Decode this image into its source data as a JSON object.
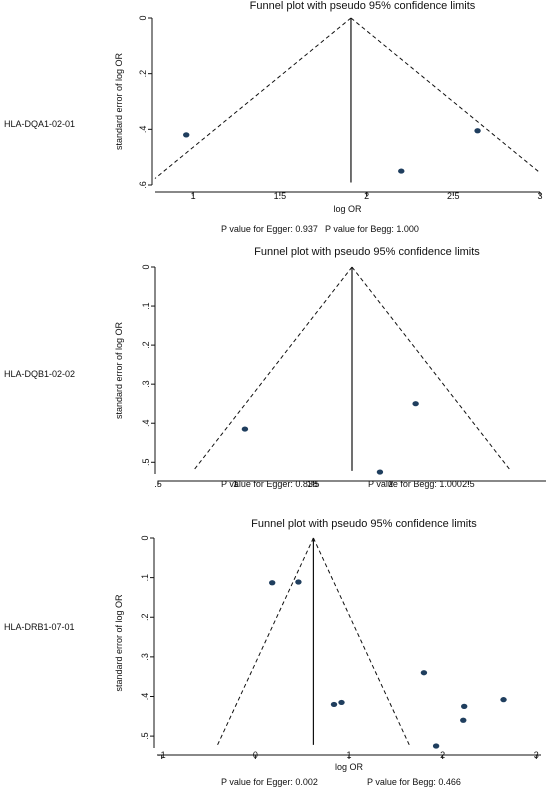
{
  "chart_data": [
    {
      "type": "scatter",
      "row_label": "HLA-DQA1-02-01",
      "title": "Funnel plot with pseudo 95% confidence limits",
      "xlabel": "log OR",
      "ylabel": "standard error of log OR",
      "xlim": [
        0.78,
        3.0
      ],
      "ylim": [
        0,
        0.6
      ],
      "y_reversed": true,
      "xticks": [
        1,
        1.5,
        2,
        2.5,
        3
      ],
      "xtick_labels": [
        "1",
        "1.5",
        "2",
        "2.5",
        "3"
      ],
      "yticks": [
        0,
        0.2,
        0.4,
        0.6
      ],
      "ytick_labels": [
        "0",
        ".2",
        ".4",
        ".6"
      ],
      "pooled_estimate": 1.91,
      "points": [
        {
          "x": 0.96,
          "y": 0.42
        },
        {
          "x": 2.2,
          "y": 0.55
        },
        {
          "x": 2.64,
          "y": 0.405
        }
      ],
      "egger_text": "P value for Egger: 0.937",
      "begg_text": "P value for Begg: 1.000"
    },
    {
      "type": "scatter",
      "row_label": "HLA-DQB1-02-02",
      "title": "Funnel plot with pseudo 95% confidence limits",
      "xlabel": "",
      "ylabel": "standard error of log OR",
      "xlim": [
        0.5,
        3.0
      ],
      "ylim": [
        0,
        0.53
      ],
      "y_reversed": true,
      "xticks": [
        0.5,
        1,
        1.5,
        2,
        2.5
      ],
      "xtick_labels": [
        ".5",
        "1",
        "1.5",
        "2",
        "2.5"
      ],
      "yticks": [
        0,
        0.1,
        0.2,
        0.3,
        0.4,
        0.5
      ],
      "ytick_labels": [
        "0",
        ".1",
        ".2",
        ".3",
        ".4",
        ".5"
      ],
      "pooled_estimate": 1.75,
      "points": [
        {
          "x": 1.06,
          "y": 0.415
        },
        {
          "x": 1.93,
          "y": 0.525
        },
        {
          "x": 2.16,
          "y": 0.35
        }
      ],
      "egger_text": "P value for Egger: 0.838",
      "begg_text": "P value for Begg: 1.000"
    },
    {
      "type": "scatter",
      "row_label": "HLA-DRB1-07-01",
      "title": "Funnel plot with pseudo 95% confidence limits",
      "xlabel": "log OR",
      "ylabel": "standard error of log OR",
      "xlim": [
        -1.05,
        3.05
      ],
      "ylim": [
        0,
        0.53
      ],
      "y_reversed": true,
      "xticks": [
        -1,
        0,
        1,
        2,
        3
      ],
      "xtick_labels": [
        "-1",
        "0",
        "1",
        "2",
        "3"
      ],
      "yticks": [
        0,
        0.1,
        0.2,
        0.3,
        0.4,
        0.5
      ],
      "ytick_labels": [
        "0",
        ".1",
        ".2",
        ".3",
        ".4",
        ".5"
      ],
      "pooled_estimate": 0.62,
      "points": [
        {
          "x": 0.18,
          "y": 0.113
        },
        {
          "x": 0.46,
          "y": 0.111
        },
        {
          "x": 0.84,
          "y": 0.42
        },
        {
          "x": 0.92,
          "y": 0.415
        },
        {
          "x": 1.8,
          "y": 0.34
        },
        {
          "x": 1.93,
          "y": 0.525
        },
        {
          "x": 2.23,
          "y": 0.425
        },
        {
          "x": 2.22,
          "y": 0.46
        },
        {
          "x": 2.65,
          "y": 0.408
        }
      ],
      "egger_text": "P value for Egger: 0.002",
      "begg_text": "P value for Begg: 0.466"
    }
  ],
  "colors": {
    "point": "#1f3e5e",
    "line": "#111111"
  }
}
